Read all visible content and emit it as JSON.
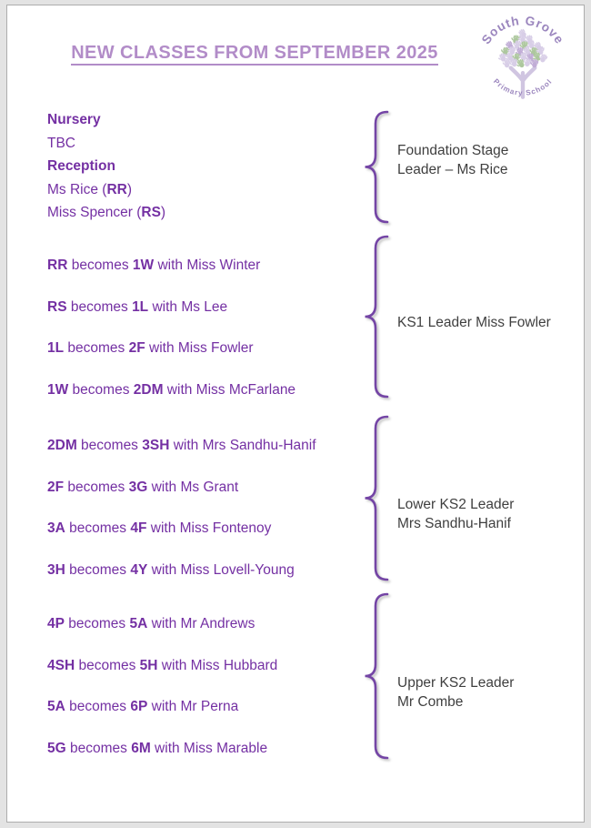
{
  "title": "NEW CLASSES FROM SEPTEMBER 2025",
  "colors": {
    "title": "#b28cc8",
    "body_text": "#7430a3",
    "leader_text": "#3f3f3f",
    "brace": "#7445a5"
  },
  "logo": {
    "arc_top": "South Grove",
    "arc_bottom": "Primary School",
    "text_color": "#9b86be",
    "hand_lilac": "#d8cee7",
    "hand_green": "#adc79e",
    "hand_purple": "#c1add6",
    "trunk_color": "#d0c5e1"
  },
  "groups": [
    {
      "leader_lines": [
        "Foundation Stage",
        "Leader – Ms Rice"
      ],
      "lines": [
        [
          {
            "t": "Nursery",
            "b": true
          }
        ],
        [
          {
            "t": "TBC",
            "b": false
          }
        ],
        [
          {
            "t": "Reception",
            "b": true
          }
        ],
        [
          {
            "t": "Ms Rice (",
            "b": false
          },
          {
            "t": "RR",
            "b": true
          },
          {
            "t": ")",
            "b": false
          }
        ],
        [
          {
            "t": "Miss Spencer (",
            "b": false
          },
          {
            "t": "RS",
            "b": true
          },
          {
            "t": ")",
            "b": false
          }
        ]
      ]
    },
    {
      "leader_lines": [
        "KS1 Leader Miss Fowler"
      ],
      "lines": [
        [
          {
            "t": "RR",
            "b": true
          },
          {
            "t": " becomes ",
            "b": false
          },
          {
            "t": "1W",
            "b": true
          },
          {
            "t": " with Miss Winter",
            "b": false
          }
        ],
        [
          {
            "t": "RS",
            "b": true
          },
          {
            "t": " becomes ",
            "b": false
          },
          {
            "t": "1L",
            "b": true
          },
          {
            "t": " with Ms Lee",
            "b": false
          }
        ],
        [
          {
            "t": "1L",
            "b": true
          },
          {
            "t": " becomes ",
            "b": false
          },
          {
            "t": "2F",
            "b": true
          },
          {
            "t": " with Miss Fowler",
            "b": false
          }
        ],
        [
          {
            "t": "1W",
            "b": true
          },
          {
            "t": " becomes ",
            "b": false
          },
          {
            "t": "2DM",
            "b": true
          },
          {
            "t": " with Miss McFarlane",
            "b": false
          }
        ]
      ]
    },
    {
      "leader_lines": [
        "Lower KS2 Leader",
        "Mrs Sandhu-Hanif"
      ],
      "lines": [
        [
          {
            "t": "2DM",
            "b": true
          },
          {
            "t": " becomes ",
            "b": false
          },
          {
            "t": "3SH",
            "b": true
          },
          {
            "t": " with Mrs Sandhu-Hanif",
            "b": false
          }
        ],
        [
          {
            "t": "2F",
            "b": true
          },
          {
            "t": " becomes ",
            "b": false
          },
          {
            "t": "3G",
            "b": true
          },
          {
            "t": " with Ms Grant",
            "b": false
          }
        ],
        [
          {
            "t": "3A",
            "b": true
          },
          {
            "t": " becomes ",
            "b": false
          },
          {
            "t": "4F",
            "b": true
          },
          {
            "t": " with Miss Fontenoy",
            "b": false
          }
        ],
        [
          {
            "t": "3H",
            "b": true
          },
          {
            "t": " becomes ",
            "b": false
          },
          {
            "t": "4Y",
            "b": true
          },
          {
            "t": " with Miss Lovell-Young",
            "b": false
          }
        ]
      ]
    },
    {
      "leader_lines": [
        "Upper KS2 Leader",
        "Mr Combe"
      ],
      "lines": [
        [
          {
            "t": "4P",
            "b": true
          },
          {
            "t": " becomes ",
            "b": false
          },
          {
            "t": "5A",
            "b": true
          },
          {
            "t": " with Mr Andrews",
            "b": false
          }
        ],
        [
          {
            "t": "4SH",
            "b": true
          },
          {
            "t": " becomes ",
            "b": false
          },
          {
            "t": "5H",
            "b": true
          },
          {
            "t": " with Miss Hubbard",
            "b": false
          }
        ],
        [
          {
            "t": "5A",
            "b": true
          },
          {
            "t": " becomes ",
            "b": false
          },
          {
            "t": "6P",
            "b": true
          },
          {
            "t": " with Mr Perna",
            "b": false
          }
        ],
        [
          {
            "t": "5G",
            "b": true
          },
          {
            "t": " becomes ",
            "b": false
          },
          {
            "t": "6M",
            "b": true
          },
          {
            "t": " with Miss Marable",
            "b": false
          }
        ]
      ]
    }
  ]
}
